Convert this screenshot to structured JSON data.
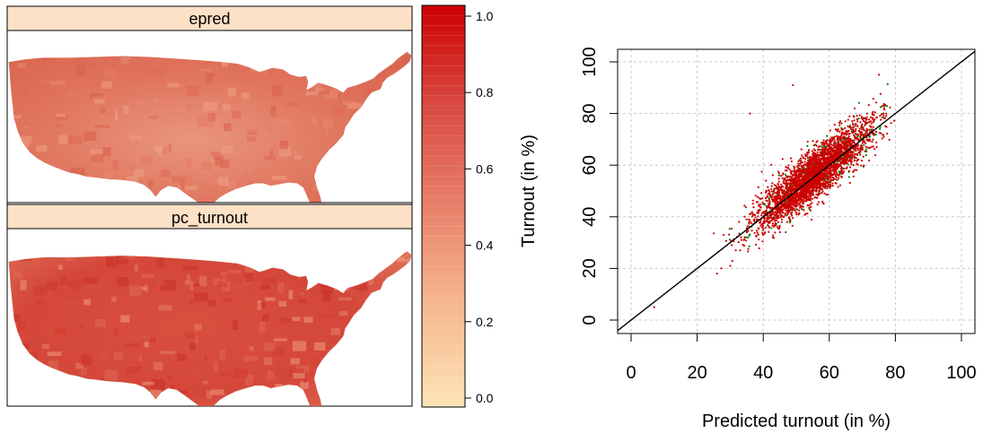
{
  "chart_data": [
    {
      "type": "heatmap",
      "subtype": "choropleth-map",
      "panels": [
        {
          "strip_label": "epred"
        },
        {
          "strip_label": "pc_turnout"
        }
      ],
      "colorkey": {
        "range": [
          0.0,
          1.0
        ],
        "ticks": [
          "0.0",
          "0.2",
          "0.4",
          "0.6",
          "0.8",
          "1.0"
        ],
        "low_color": "#fde4b6",
        "high_color": "#cc0000"
      },
      "strip_color": "#fde1c6"
    },
    {
      "type": "scatter",
      "xlabel": "Predicted turnout (in %)",
      "ylabel": "Turnout (in %)",
      "xlim": [
        0,
        100
      ],
      "ylim": [
        0,
        100
      ],
      "xticks": [
        "0",
        "20",
        "40",
        "60",
        "80",
        "100"
      ],
      "yticks": [
        "0",
        "20",
        "40",
        "60",
        "80",
        "100"
      ],
      "grid": true,
      "reference_line": {
        "slope": 1,
        "intercept": 0
      },
      "series": [
        {
          "color": "#008000",
          "description": "green points",
          "center": [
            56,
            57
          ],
          "sd": 8.5,
          "noise": 4.5,
          "count": 450
        },
        {
          "color": "#cc0000",
          "description": "red points",
          "center": [
            55,
            56
          ],
          "sd": 8.5,
          "noise": 4.5,
          "count": 3000
        }
      ],
      "outliers": [
        {
          "x": 7,
          "y": 5
        },
        {
          "x": 26,
          "y": 18
        },
        {
          "x": 30,
          "y": 21
        },
        {
          "x": 49,
          "y": 91
        },
        {
          "x": 36,
          "y": 80
        },
        {
          "x": 75,
          "y": 95
        },
        {
          "x": 31,
          "y": 31
        },
        {
          "x": 33,
          "y": 27
        },
        {
          "x": 28,
          "y": 33
        }
      ]
    }
  ]
}
